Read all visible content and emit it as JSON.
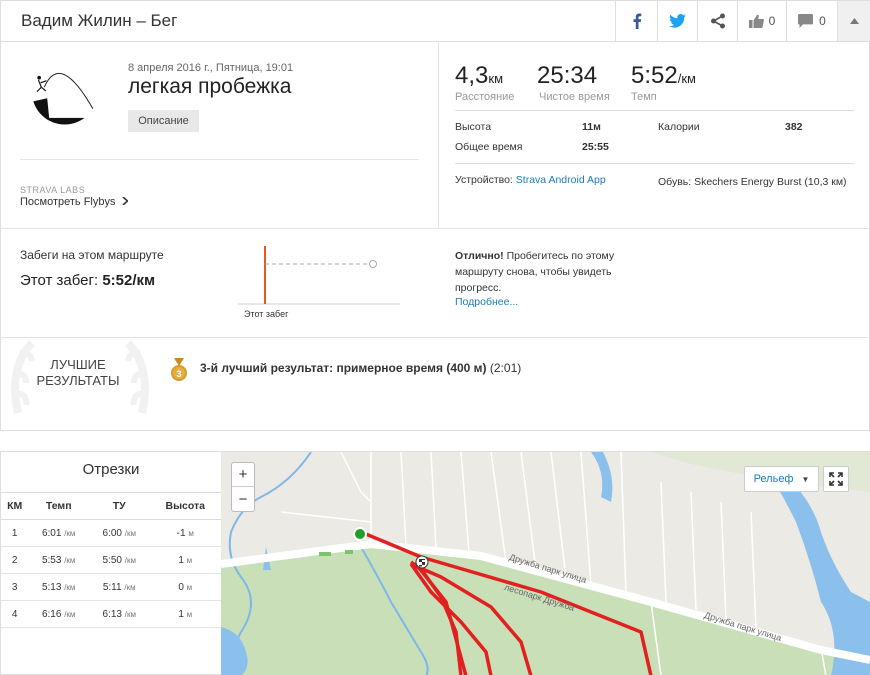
{
  "header": {
    "title": "Вадим Жилин – Бег",
    "kudos_count": "0",
    "comments_count": "0",
    "icons": [
      "facebook-icon",
      "twitter-icon",
      "share-icon",
      "thumbs-up-icon",
      "comment-icon",
      "collapse-icon"
    ]
  },
  "activity": {
    "date": "8 апреля 2016 г., Пятница, 19:01",
    "name": "легкая пробежка",
    "description_button": "Описание",
    "labs_label": "STRAVA LABS",
    "flyby_link": "Посмотреть Flybys"
  },
  "stats": {
    "distance": {
      "value": "4,3",
      "unit": "км",
      "label": "Расстояние"
    },
    "moving_time": {
      "value": "25:34",
      "label": "Чистое время"
    },
    "pace": {
      "value": "5:52",
      "unit": "/км",
      "label": "Темп"
    },
    "elevation_label": "Высота",
    "elevation_value": "11м",
    "calories_label": "Калории",
    "calories_value": "382",
    "elapsed_label": "Общее время",
    "elapsed_value": "25:55",
    "device_label": "Устройство:",
    "device_value": "Strava Android App",
    "shoes_label": "Обувь:",
    "shoes_value": "Skechers Energy Burst (10,3 км)"
  },
  "route": {
    "label": "Забеги на этом маршруте",
    "this_run_label": "Этот забег:",
    "this_run_value": "5:52/км",
    "chart_label": "Этот забег",
    "message_bold": "Отлично!",
    "message": "Пробегитесь по этому маршруту снова, чтобы увидеть прогресс.",
    "more_link": "Подробнее..."
  },
  "best": {
    "title_line1": "ЛУЧШИЕ",
    "title_line2": "РЕЗУЛЬТАТЫ",
    "medal_number": "3",
    "result_bold": "3-й лучший результат: примерное время (400 м)",
    "result_time": "(2:01)",
    "medal_color": "#d99a2b"
  },
  "splits": {
    "title": "Отрезки",
    "columns": [
      "КМ",
      "Темп",
      "ТУ",
      "Высота"
    ],
    "rows": [
      {
        "km": "1",
        "pace": "6:01",
        "gap": "6:00",
        "elev": "-1",
        "pace_unit": "/км",
        "elev_unit": "м"
      },
      {
        "km": "2",
        "pace": "5:53",
        "gap": "5:50",
        "elev": "1",
        "pace_unit": "/км",
        "elev_unit": "м"
      },
      {
        "km": "3",
        "pace": "5:13",
        "gap": "5:11",
        "elev": "0",
        "pace_unit": "/км",
        "elev_unit": "м"
      },
      {
        "km": "4",
        "pace": "6:16",
        "gap": "6:13",
        "elev": "1",
        "pace_unit": "/км",
        "elev_unit": "м"
      }
    ]
  },
  "map": {
    "zoom_in": "+",
    "zoom_out": "−",
    "layer_button": "Рельеф",
    "street_1": "Дружба парк улица",
    "street_2": "лесопарк Дружба",
    "street_3": "Дружба парк улица",
    "route_color": "#e32020",
    "start_color": "#1fa02a"
  },
  "colors": {
    "accent_link": "#1a7bb9",
    "chart_bar": "#e35a1c"
  }
}
